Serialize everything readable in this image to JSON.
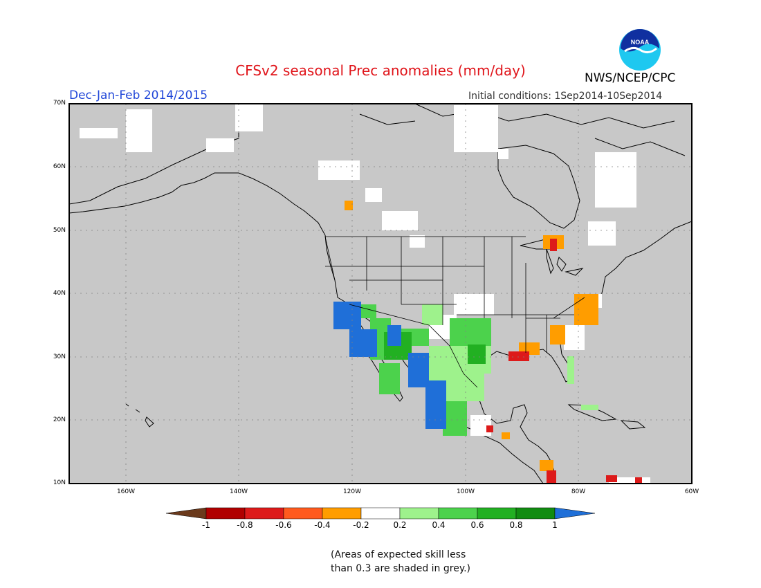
{
  "header": {
    "title": "CFSv2 seasonal Prec anomalies (mm/day)",
    "season": "Dec-Jan-Feb 2014/2015",
    "initial_conditions": "Initial conditions: 1Sep2014-10Sep2014",
    "agency": "NWS/NCEP/CPC",
    "logo_text": "NOAA"
  },
  "map": {
    "projection": "lat-lon",
    "lon_range": [
      -170,
      -60
    ],
    "lat_range": [
      10,
      70
    ],
    "lat_ticks": [
      "70N",
      "60N",
      "50N",
      "40N",
      "30N",
      "20N",
      "10N"
    ],
    "lon_ticks": [
      "160W",
      "140W",
      "120W",
      "100W",
      "80W",
      "60W"
    ],
    "ocean_color": "#c8c8c8",
    "coast_color": "#000000"
  },
  "colorbar": {
    "tick_labels": [
      "-1",
      "-0.8",
      "-0.6",
      "-0.4",
      "-0.2",
      "0.2",
      "0.4",
      "0.6",
      "0.8",
      "1"
    ],
    "colors": [
      "#6b3a1c",
      "#b00000",
      "#dd1a1a",
      "#ff5a1e",
      "#ff9d00",
      "#ffffff",
      "#9ef28c",
      "#4cd24c",
      "#22b022",
      "#118c11",
      "#1f6fd8"
    ]
  },
  "note": {
    "line1": "(Areas of expected skill less",
    "line2": "than 0.3 are shaded in grey.)"
  }
}
